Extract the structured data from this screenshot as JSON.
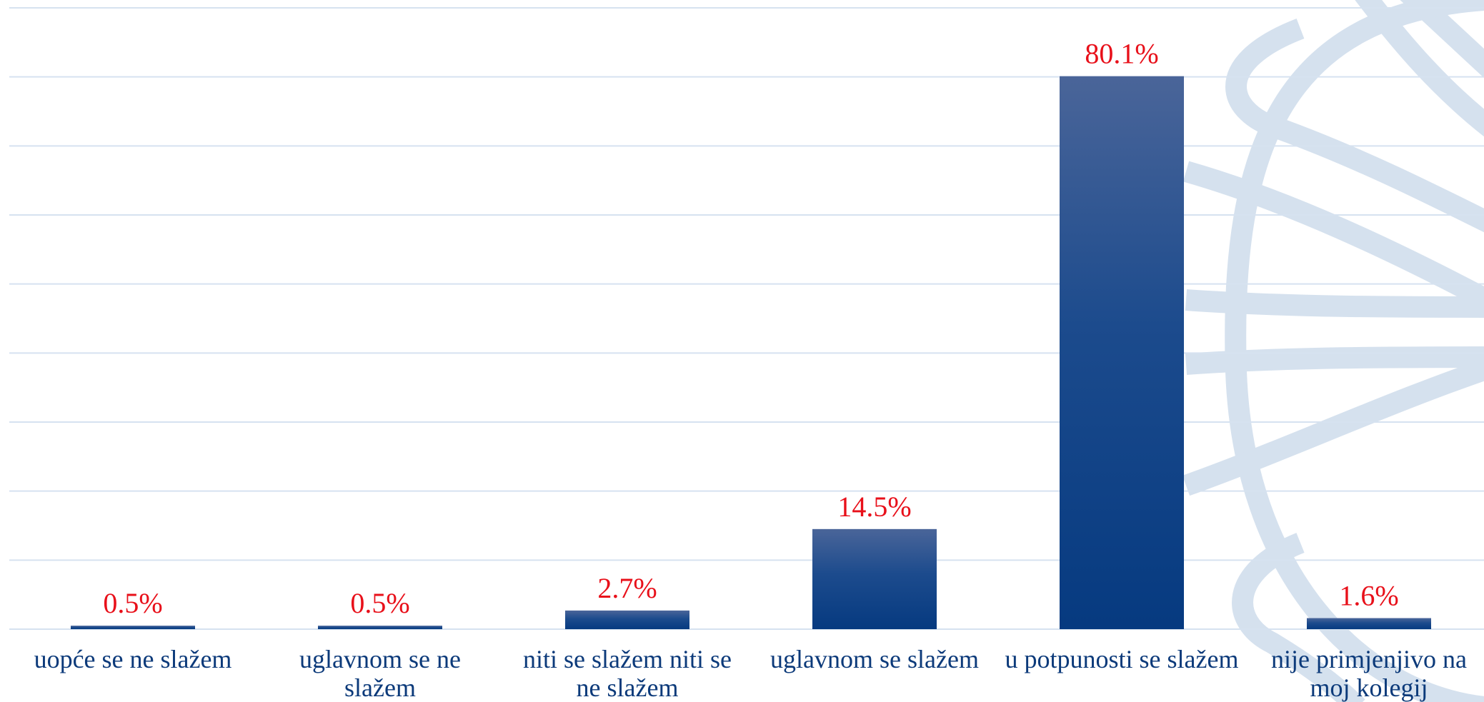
{
  "chart_data": {
    "type": "bar",
    "categories": [
      "uopće se ne slažem",
      "uglavnom se ne slažem",
      "niti se slažem niti se ne slažem",
      "uglavnom se slažem",
      "u potpunosti se slažem",
      "nije primjenjivo na moj kolegij"
    ],
    "values": [
      0.5,
      0.5,
      2.7,
      14.5,
      80.1,
      1.6
    ],
    "value_labels": [
      "0.5%",
      "0.5%",
      "2.7%",
      "14.5%",
      "80.1%",
      "1.6%"
    ],
    "color": "#063a80",
    "ylim": [
      0,
      90
    ],
    "yticks": [
      0,
      10,
      20,
      30,
      40,
      50,
      60,
      70,
      80,
      90
    ],
    "grid": true
  }
}
